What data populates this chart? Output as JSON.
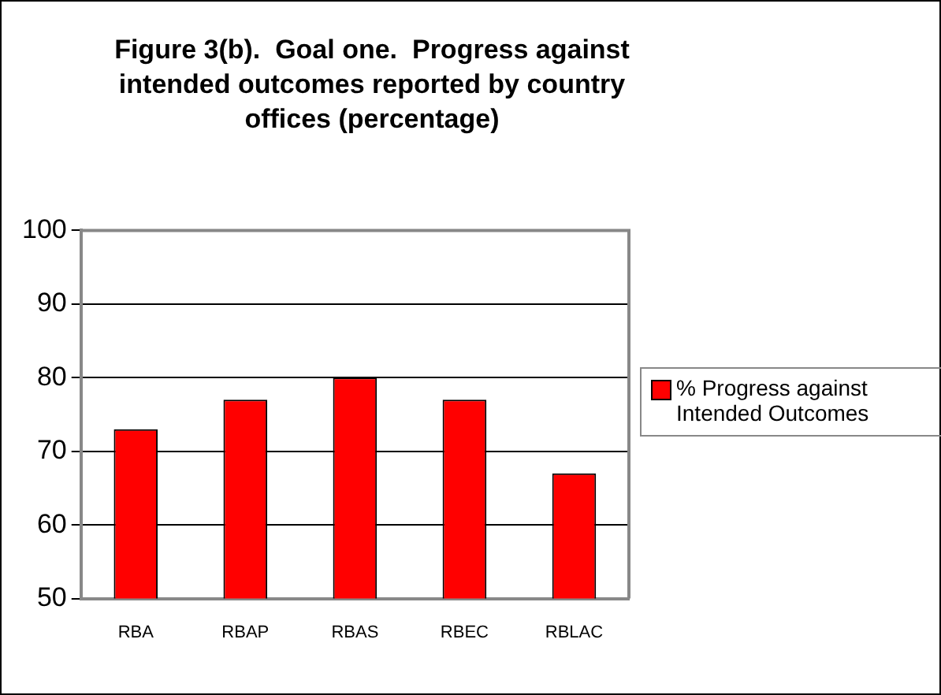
{
  "chart_data": {
    "type": "bar",
    "title": "Figure 3(b).  Goal one.  Progress against intended outcomes reported by country offices (percentage)",
    "categories": [
      "RBA",
      "RBAP",
      "RBAS",
      "RBEC",
      "RBLAC"
    ],
    "series": [
      {
        "name": "% Progress against Intended Outcomes",
        "color": "#ff0000",
        "values": [
          73,
          77,
          80,
          77,
          67
        ]
      }
    ],
    "ylim": [
      50,
      100
    ],
    "yticks": [
      50,
      60,
      70,
      80,
      90,
      100
    ],
    "grid": "y",
    "legend": "right"
  }
}
